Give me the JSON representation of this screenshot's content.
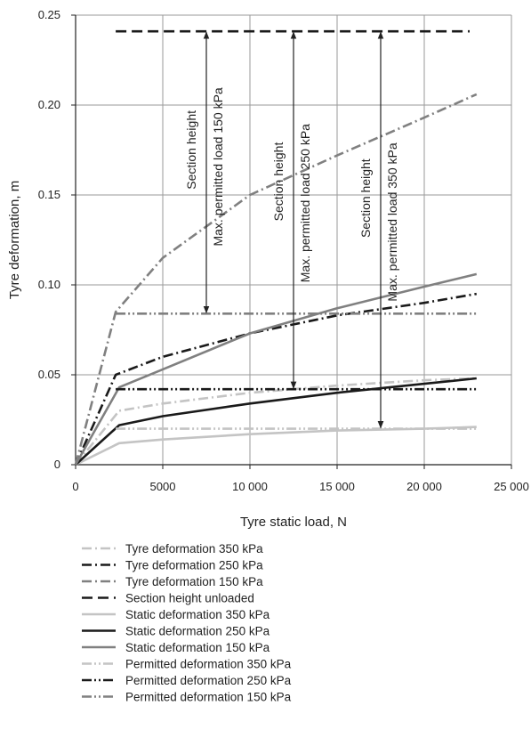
{
  "chart_data": {
    "type": "line",
    "title": "",
    "xlabel": "Tyre static load, N",
    "ylabel": "Tyre deformation, m",
    "xlim": [
      0,
      25000
    ],
    "ylim": [
      0,
      0.25
    ],
    "x_ticks": [
      0,
      5000,
      10000,
      15000,
      20000,
      25000
    ],
    "x_tick_labels": [
      "0",
      "5000",
      "10 000",
      "15 000",
      "20 000",
      "25 000"
    ],
    "y_ticks": [
      0,
      0.05,
      0.1,
      0.15,
      0.2,
      0.25
    ],
    "y_tick_labels": [
      "0",
      "0.05",
      "0.10",
      "0.15",
      "0.20",
      "0.25"
    ],
    "grid": true,
    "legend_position": "bottom",
    "series": [
      {
        "name": "Tyre deformation 350 kPa",
        "color": "#c4c4c4",
        "dash": "dashdot",
        "x": [
          0,
          2500,
          5000,
          10000,
          15000,
          20000,
          23000
        ],
        "y": [
          0,
          0.03,
          0.034,
          0.04,
          0.044,
          0.047,
          0.048
        ]
      },
      {
        "name": "Tyre deformation 250 kPa",
        "color": "#1a1a1a",
        "dash": "dashdot",
        "x": [
          0,
          2300,
          5000,
          10000,
          15000,
          20000,
          23000
        ],
        "y": [
          0,
          0.05,
          0.06,
          0.073,
          0.083,
          0.09,
          0.095
        ]
      },
      {
        "name": "Tyre deformation 150 kPa",
        "color": "#808080",
        "dash": "dashdot",
        "x": [
          0,
          2300,
          5000,
          10000,
          15000,
          20000,
          23000
        ],
        "y": [
          0,
          0.085,
          0.115,
          0.15,
          0.172,
          0.193,
          0.206
        ]
      },
      {
        "name": "Section height unloaded",
        "color": "#1a1a1a",
        "dash": "dash",
        "x": [
          2300,
          22600
        ],
        "y": [
          0.241,
          0.241
        ]
      },
      {
        "name": "Static deformation 350 kPa",
        "color": "#c4c4c4",
        "dash": "solid",
        "x": [
          0,
          2500,
          5000,
          10000,
          15000,
          20000,
          23000
        ],
        "y": [
          0,
          0.012,
          0.014,
          0.017,
          0.019,
          0.02,
          0.021
        ]
      },
      {
        "name": "Static deformation 250 kPa",
        "color": "#1a1a1a",
        "dash": "solid",
        "x": [
          0,
          2500,
          5000,
          10000,
          15000,
          20000,
          23000
        ],
        "y": [
          0,
          0.022,
          0.027,
          0.034,
          0.04,
          0.045,
          0.048
        ]
      },
      {
        "name": "Static deformation 150 kPa",
        "color": "#808080",
        "dash": "solid",
        "x": [
          0,
          2500,
          5000,
          10000,
          15000,
          20000,
          23000
        ],
        "y": [
          0,
          0.043,
          0.053,
          0.073,
          0.087,
          0.099,
          0.106
        ]
      },
      {
        "name": "Permitted deformation 350 kPa",
        "color": "#c4c4c4",
        "dash": "dashdotdot",
        "x": [
          2300,
          23000
        ],
        "y": [
          0.02,
          0.02
        ]
      },
      {
        "name": "Permitted deformation 250 kPa",
        "color": "#1a1a1a",
        "dash": "dashdotdot",
        "x": [
          2300,
          23000
        ],
        "y": [
          0.042,
          0.042
        ]
      },
      {
        "name": "Permitted deformation 150 kPa",
        "color": "#808080",
        "dash": "dashdotdot",
        "x": [
          2300,
          23000
        ],
        "y": [
          0.084,
          0.084
        ]
      }
    ],
    "annotations": [
      {
        "id": "ann-150",
        "x": 7500,
        "y_top": 0.241,
        "y_bottom": 0.084,
        "labels": [
          "Section height",
          "Max. permitted load 150 kPa"
        ]
      },
      {
        "id": "ann-250",
        "x": 12500,
        "y_top": 0.241,
        "y_bottom": 0.042,
        "labels": [
          "Section height",
          "Max. permitted load 250 kPa"
        ]
      },
      {
        "id": "ann-350",
        "x": 17500,
        "y_top": 0.241,
        "y_bottom": 0.02,
        "labels": [
          "Section height",
          "Max. permitted load 350 kPa"
        ]
      }
    ]
  }
}
